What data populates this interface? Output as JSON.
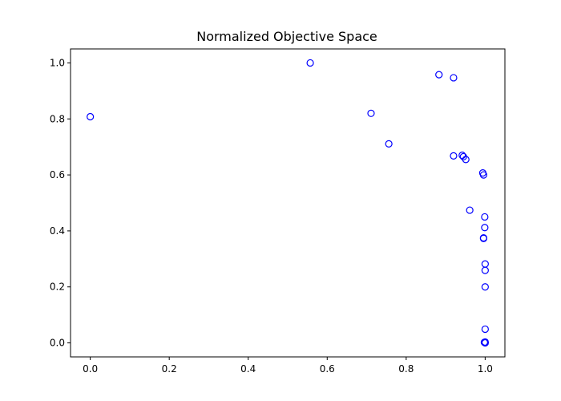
{
  "chart_data": {
    "type": "scatter",
    "title": "Normalized Objective Space",
    "xlabel": "",
    "ylabel": "",
    "xlim": [
      -0.05,
      1.05
    ],
    "ylim": [
      -0.05,
      1.05
    ],
    "xticks": [
      "0.0",
      "0.2",
      "0.4",
      "0.6",
      "0.8",
      "1.0"
    ],
    "yticks": [
      "0.0",
      "0.2",
      "0.4",
      "0.6",
      "0.8",
      "1.0"
    ],
    "grid": false,
    "marker": "open-circle",
    "marker_color": "#0000ff",
    "series": [
      {
        "points": [
          [
            0.0,
            0.808
          ],
          [
            0.557,
            1.0
          ],
          [
            0.711,
            0.82
          ],
          [
            0.756,
            0.711
          ],
          [
            0.883,
            0.958
          ],
          [
            0.92,
            0.947
          ],
          [
            0.92,
            0.668
          ],
          [
            0.942,
            0.67
          ],
          [
            0.945,
            0.665
          ],
          [
            0.951,
            0.655
          ],
          [
            0.961,
            0.474
          ],
          [
            0.994,
            0.607
          ],
          [
            0.996,
            0.6
          ],
          [
            0.996,
            0.373
          ],
          [
            0.996,
            0.375
          ],
          [
            0.999,
            0.45
          ],
          [
            0.999,
            0.412
          ],
          [
            1.0,
            0.282
          ],
          [
            1.0,
            0.259
          ],
          [
            1.0,
            0.2
          ],
          [
            1.0,
            0.049
          ],
          [
            1.0,
            0.003
          ],
          [
            0.998,
            0.002
          ],
          [
            1.0,
            0.0
          ]
        ]
      }
    ]
  }
}
